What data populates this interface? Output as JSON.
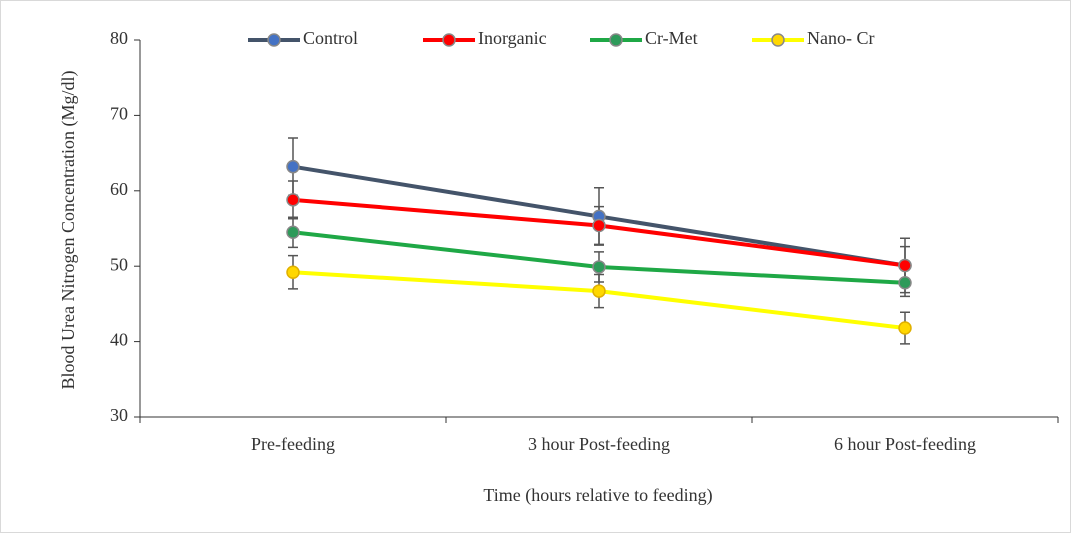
{
  "chart_data": {
    "type": "line",
    "x_label": "Time (hours relative to feeding)",
    "y_label": "Blood Urea Nitrogen Concentration (Mg/dl)",
    "categories": [
      "Pre-feeding",
      "3 hour Post-feeding",
      "6 hour Post-feeding"
    ],
    "ylim": [
      30,
      80
    ],
    "yticks": [
      30,
      40,
      50,
      60,
      70,
      80
    ],
    "grid": false,
    "legend": "top",
    "series": [
      {
        "name": "Control",
        "color": "#44546a",
        "marker_color": "#4472c4",
        "values": [
          63.2,
          56.6,
          50.1
        ],
        "errors": [
          3.8,
          3.8,
          3.6
        ]
      },
      {
        "name": "Inorganic",
        "color": "#ff0000",
        "marker_color": "#ff0000",
        "values": [
          58.8,
          55.4,
          50.1
        ],
        "errors": [
          2.5,
          2.5,
          2.5
        ]
      },
      {
        "name": "Cr-Met",
        "color": "#1fa846",
        "marker_color": "#2e9a5a",
        "values": [
          54.5,
          49.9,
          47.8
        ],
        "errors": [
          2.0,
          2.0,
          1.8
        ]
      },
      {
        "name": "Nano- Cr",
        "color": "#ffff00",
        "marker_color": "#ffd700",
        "values": [
          49.2,
          46.7,
          41.8
        ],
        "errors": [
          2.2,
          2.2,
          2.1
        ]
      }
    ]
  }
}
